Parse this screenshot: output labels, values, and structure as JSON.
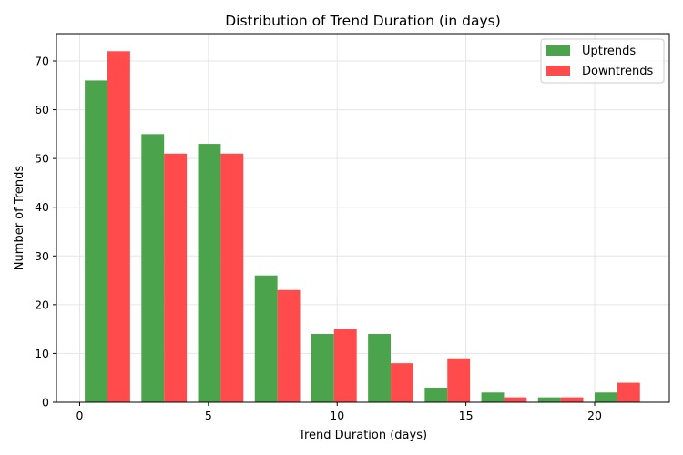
{
  "chart_data": {
    "type": "bar",
    "title": "Distribution of Trend Duration (in days)",
    "xlabel": "Trend Duration (days)",
    "ylabel": "Number of Trends",
    "xlim": [
      -0.9,
      22.9
    ],
    "ylim": [
      0,
      75.6
    ],
    "xticks": [
      0,
      5,
      10,
      15,
      20
    ],
    "yticks": [
      0,
      10,
      20,
      30,
      40,
      50,
      60,
      70
    ],
    "grid": true,
    "legend_position": "top-right",
    "bin_width": 2.2,
    "bar_width": 0.88,
    "bins": [
      0.2,
      2.4,
      4.6,
      6.8,
      9.0,
      11.2,
      13.4,
      15.6,
      17.8,
      20.0
    ],
    "series": [
      {
        "name": "Uptrends",
        "color": "#4ba34b",
        "offset": 0,
        "values": [
          66,
          55,
          53,
          26,
          14,
          14,
          3,
          2,
          1,
          2
        ]
      },
      {
        "name": "Downtrends",
        "color": "#ff4b4b",
        "offset": 0.88,
        "values": [
          72,
          51,
          51,
          23,
          15,
          8,
          9,
          1,
          1,
          4
        ]
      }
    ]
  }
}
